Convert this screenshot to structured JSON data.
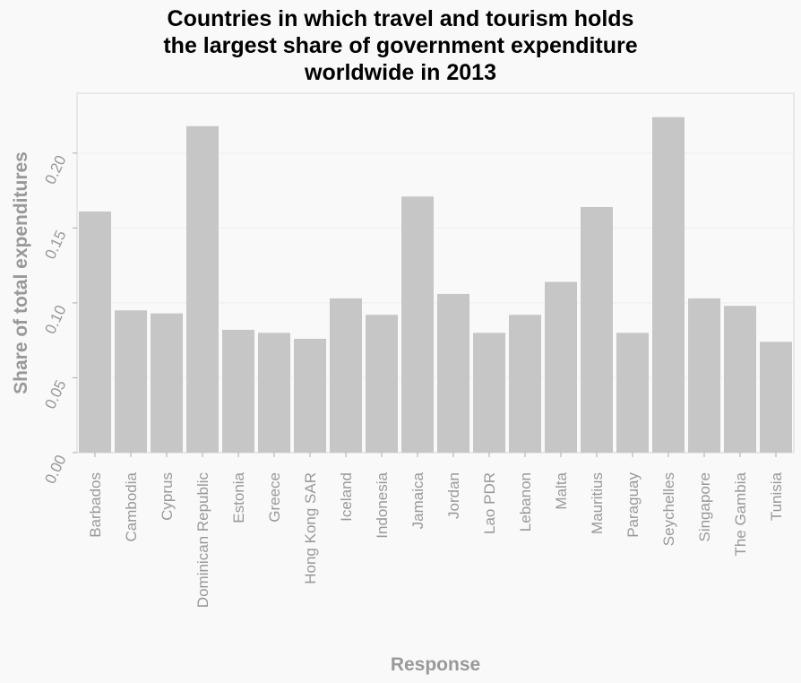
{
  "chart_data": {
    "type": "bar",
    "title_lines": [
      "Countries in which travel and tourism holds",
      "the largest share of government expenditure",
      "worldwide in 2013"
    ],
    "xlabel": "Response",
    "ylabel": "Share of total expenditures",
    "ylim": [
      0,
      0.24
    ],
    "yticks": [
      "0.00",
      "0.05",
      "0.10",
      "0.15",
      "0.20"
    ],
    "grid": true,
    "categories": [
      "Barbados",
      "Cambodia",
      "Cyprus",
      "Dominican Republic",
      "Estonia",
      "Greece",
      "Hong Kong SAR",
      "Iceland",
      "Indonesia",
      "Jamaica",
      "Jordan",
      "Lao PDR",
      "Lebanon",
      "Malta",
      "Mauritius",
      "Paraguay",
      "Seychelles",
      "Singapore",
      "The Gambia",
      "Tunisia"
    ],
    "values": [
      0.161,
      0.095,
      0.093,
      0.218,
      0.082,
      0.08,
      0.076,
      0.103,
      0.092,
      0.171,
      0.106,
      0.08,
      0.092,
      0.114,
      0.164,
      0.08,
      0.224,
      0.103,
      0.098,
      0.074
    ],
    "colors": {
      "bar": "#c6c6c6",
      "plot_bg": "#f9f9f9",
      "frame": "#d8d8d8",
      "grid": "#eeeeee",
      "text": "#999999",
      "title": "#000000"
    }
  }
}
